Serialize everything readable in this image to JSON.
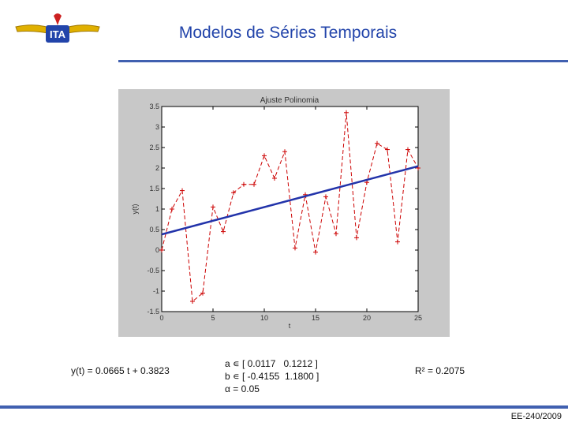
{
  "header": {
    "title": "Modelos de Séries Temporais",
    "logo_text": "ITA"
  },
  "colors": {
    "accent": "#4060b0",
    "title": "#2244aa",
    "series": "#cc0000",
    "fit": "#2233aa",
    "plot_bg": "#c8c8c8"
  },
  "chart_data": {
    "type": "line",
    "title": "Ajuste Polinomia",
    "xlabel": "t",
    "ylabel": "y(t)",
    "xlim": [
      0,
      25
    ],
    "ylim": [
      -1.5,
      3.5
    ],
    "xticks": [
      "0",
      "5",
      "10",
      "15",
      "20",
      "25"
    ],
    "yticks": [
      "-1.5",
      "-1",
      "-0.5",
      "0",
      "0.5",
      "1",
      "1.5",
      "2",
      "2.5",
      "3",
      "3.5"
    ],
    "series": [
      {
        "x": [
          0,
          1,
          2,
          3,
          4,
          5,
          6,
          7,
          8,
          9,
          10,
          11,
          12,
          13,
          14,
          15,
          16,
          17,
          18,
          19,
          20,
          21,
          22,
          23,
          24,
          25
        ],
        "values": [
          0.0,
          1.0,
          1.45,
          -1.25,
          -1.05,
          1.05,
          0.45,
          1.4,
          1.6,
          1.6,
          2.3,
          1.75,
          2.4,
          0.05,
          1.35,
          -0.05,
          1.3,
          0.4,
          3.35,
          0.3,
          1.65,
          2.6,
          2.45,
          0.2,
          2.45,
          2.0
        ]
      },
      {
        "x": [
          0,
          25
        ],
        "values": [
          0.3823,
          2.0448
        ]
      }
    ]
  },
  "annotations": {
    "equation": "y(t) = 0.0665 t + 0.3823",
    "param_a": "a ∊ [ 0.0117   0.1212 ]",
    "param_b": "b ∊ [ -0.4155  1.1800 ]",
    "param_alpha": "α = 0.05",
    "r2": "R² = 0.2075"
  },
  "footer": {
    "course": "EE-240/2009"
  }
}
